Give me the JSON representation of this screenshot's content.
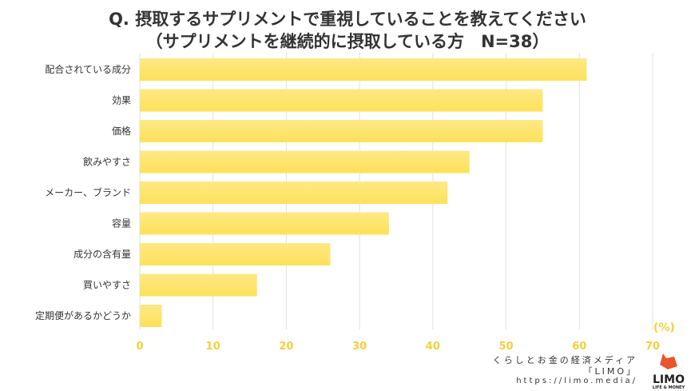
{
  "title_line1": "Q. 摂取するサプリメントで重視していることを教えてください",
  "title_line2": "（サプリメントを継続的に摂取している方　N=38）",
  "chart_data": {
    "type": "bar",
    "orientation": "horizontal",
    "categories": [
      "配合されている成分",
      "効果",
      "価格",
      "飲みやすさ",
      "メーカー、ブランド",
      "容量",
      "成分の含有量",
      "買いやすさ",
      "定期便があるかどうか"
    ],
    "values": [
      61,
      55,
      55,
      45,
      42,
      34,
      26,
      16,
      3
    ],
    "xlim": [
      0,
      70
    ],
    "xticks": [
      0,
      10,
      20,
      30,
      40,
      50,
      60,
      70
    ],
    "unit": "(%)",
    "grid": true,
    "bar_color": "#fde15a",
    "tick_color": "#f5cf3a"
  },
  "credit": {
    "line1": "くらしとお金の経済メディア",
    "line2": "「LIMO」",
    "line3": "https://limo.media/",
    "logo_text": "LIMO",
    "logo_sub": "LIFE & MONEY"
  }
}
